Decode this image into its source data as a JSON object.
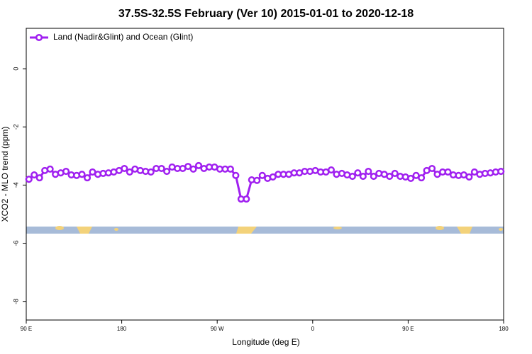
{
  "chart_data": {
    "type": "line",
    "title": "37.5S-32.5S February (Ver 10)   2015-01-01 to 2020-12-18",
    "xlabel": "Longitude (deg E)",
    "ylabel": "XCO2 - MLO trend (ppm)",
    "legend": "top-left",
    "xlim": [
      90,
      540
    ],
    "ylim": [
      -8.64,
      1.39
    ],
    "xticks": [
      {
        "value": 90,
        "label": "90 E"
      },
      180,
      {
        "value": 270,
        "label": "90 W"
      },
      {
        "value": 360,
        "label": "0"
      },
      {
        "value": 450,
        "label": "90 E"
      },
      {
        "value": 540,
        "label": "180"
      }
    ],
    "yticks": [
      0,
      -2,
      -4,
      -6,
      -8
    ],
    "x": [
      92.5,
      97.5,
      102.5,
      107.5,
      112.5,
      117.5,
      122.5,
      127.5,
      132.5,
      137.5,
      142.5,
      147.5,
      152.5,
      157.5,
      162.5,
      167.5,
      172.5,
      177.5,
      182.5,
      187.5,
      192.5,
      197.5,
      202.5,
      207.5,
      212.5,
      217.5,
      222.5,
      227.5,
      232.5,
      237.5,
      242.5,
      247.5,
      252.5,
      257.5,
      262.5,
      267.5,
      272.5,
      277.5,
      282.5,
      287.5,
      292.5,
      297.5,
      302.5,
      307.5,
      312.5,
      317.5,
      322.5,
      327.5,
      332.5,
      337.5,
      342.5,
      347.5,
      352.5,
      357.5,
      362.5,
      367.5,
      372.5,
      377.5,
      382.5,
      387.5,
      392.5,
      397.5,
      402.5,
      407.5,
      412.5,
      417.5,
      422.5,
      427.5,
      432.5,
      437.5,
      442.5,
      447.5,
      452.5,
      457.5,
      462.5,
      467.5,
      472.5,
      477.5,
      482.5,
      487.5,
      492.5,
      497.5,
      502.5,
      507.5,
      512.5,
      517.5,
      522.5,
      527.5,
      532.5,
      537.5
    ],
    "series": [
      {
        "name": "Land (Nadir&Glint) and Ocean (Glint)",
        "color": "#a020f0",
        "values": [
          -3.8,
          -3.65,
          -3.75,
          -3.5,
          -3.45,
          -3.63,
          -3.58,
          -3.53,
          -3.65,
          -3.67,
          -3.63,
          -3.75,
          -3.55,
          -3.63,
          -3.6,
          -3.58,
          -3.55,
          -3.5,
          -3.43,
          -3.55,
          -3.45,
          -3.5,
          -3.53,
          -3.55,
          -3.43,
          -3.43,
          -3.53,
          -3.38,
          -3.43,
          -3.43,
          -3.36,
          -3.45,
          -3.33,
          -3.43,
          -3.38,
          -3.38,
          -3.45,
          -3.45,
          -3.45,
          -3.67,
          -4.48,
          -4.48,
          -3.82,
          -3.84,
          -3.67,
          -3.77,
          -3.72,
          -3.63,
          -3.63,
          -3.63,
          -3.58,
          -3.58,
          -3.53,
          -3.53,
          -3.5,
          -3.55,
          -3.55,
          -3.48,
          -3.63,
          -3.6,
          -3.65,
          -3.7,
          -3.58,
          -3.7,
          -3.53,
          -3.7,
          -3.6,
          -3.63,
          -3.7,
          -3.6,
          -3.7,
          -3.72,
          -3.77,
          -3.67,
          -3.75,
          -3.5,
          -3.43,
          -3.63,
          -3.55,
          -3.55,
          -3.65,
          -3.67,
          -3.65,
          -3.72,
          -3.55,
          -3.63,
          -3.6,
          -3.58,
          -3.55,
          -3.53
        ]
      }
    ]
  }
}
